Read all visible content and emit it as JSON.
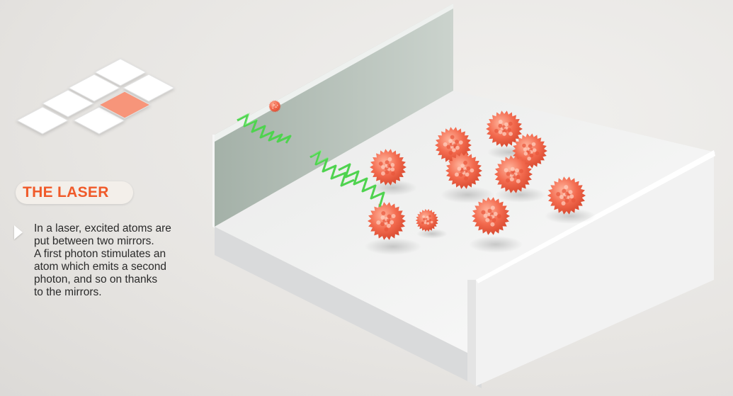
{
  "title": "THE LASER",
  "description_lines": [
    "In a laser, excited atoms are",
    "put between two mirrors.",
    "A first photon stimulates an",
    "atom which emits a second",
    "photon, and so on thanks",
    "to the mirrors."
  ],
  "nav_grid": {
    "tiles": 7,
    "active_tile_index": 6
  },
  "colors": {
    "accent": "#f05a2a",
    "active_tile": "#f7957a",
    "tile": "#ffffff",
    "atom": "#f26d52",
    "photon": "#4fd34f",
    "mirror": "#b7c2bb"
  },
  "scene": {
    "atom_count": 11,
    "photon_count": 3
  }
}
